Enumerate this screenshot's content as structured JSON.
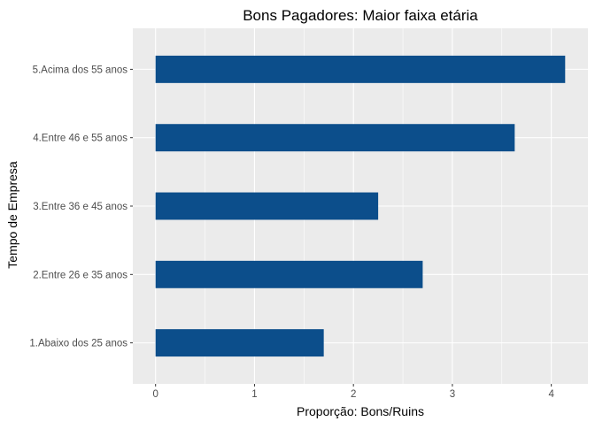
{
  "chart_data": {
    "type": "bar",
    "orientation": "horizontal",
    "title": "Bons Pagadores: Maior faixa etária",
    "xlabel": "Proporção: Bons/Ruins",
    "ylabel": "Tempo de Empresa",
    "categories": [
      "1.Abaixo dos 25 anos",
      "2.Entre 26 e 35 anos",
      "3.Entre 36 e 45 anos",
      "4.Entre 46 e 55 anos",
      "5.Acima dos 55 anos"
    ],
    "values": [
      1.7,
      2.7,
      2.25,
      3.63,
      4.14
    ],
    "xlim": [
      -0.23,
      4.37
    ],
    "xticks": [
      "0",
      "1",
      "2",
      "3",
      "4"
    ],
    "grid": true,
    "colors": {
      "bar": "#0c4e8b",
      "panel": "#ebebeb",
      "grid_major": "#ffffff",
      "axis_text": "#4d4d4d",
      "title_text": "#000000"
    }
  }
}
